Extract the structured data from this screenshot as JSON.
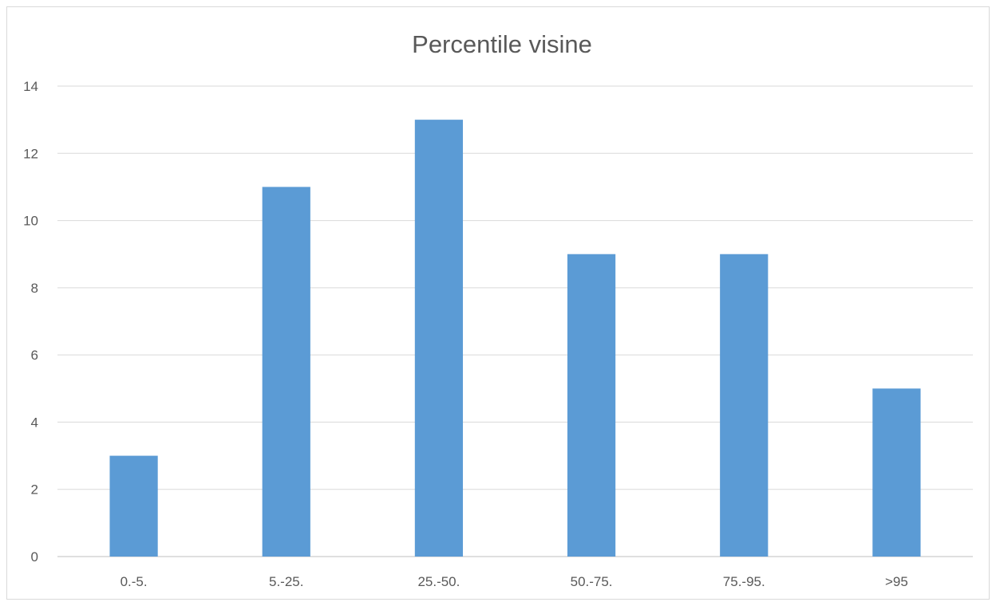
{
  "chart_data": {
    "type": "bar",
    "title": "Percentile visine",
    "xlabel": "",
    "ylabel": "",
    "categories": [
      "0.-5.",
      "5.-25.",
      "25.-50.",
      "50.-75.",
      "75.-95.",
      ">95"
    ],
    "values": [
      3,
      11,
      13,
      9,
      9,
      5
    ],
    "ylim": [
      0,
      14
    ],
    "yticks": [
      "0",
      "2",
      "4",
      "6",
      "8",
      "10",
      "12",
      "14"
    ],
    "grid": true,
    "legend": "none",
    "bar_color": "#5b9bd5"
  }
}
